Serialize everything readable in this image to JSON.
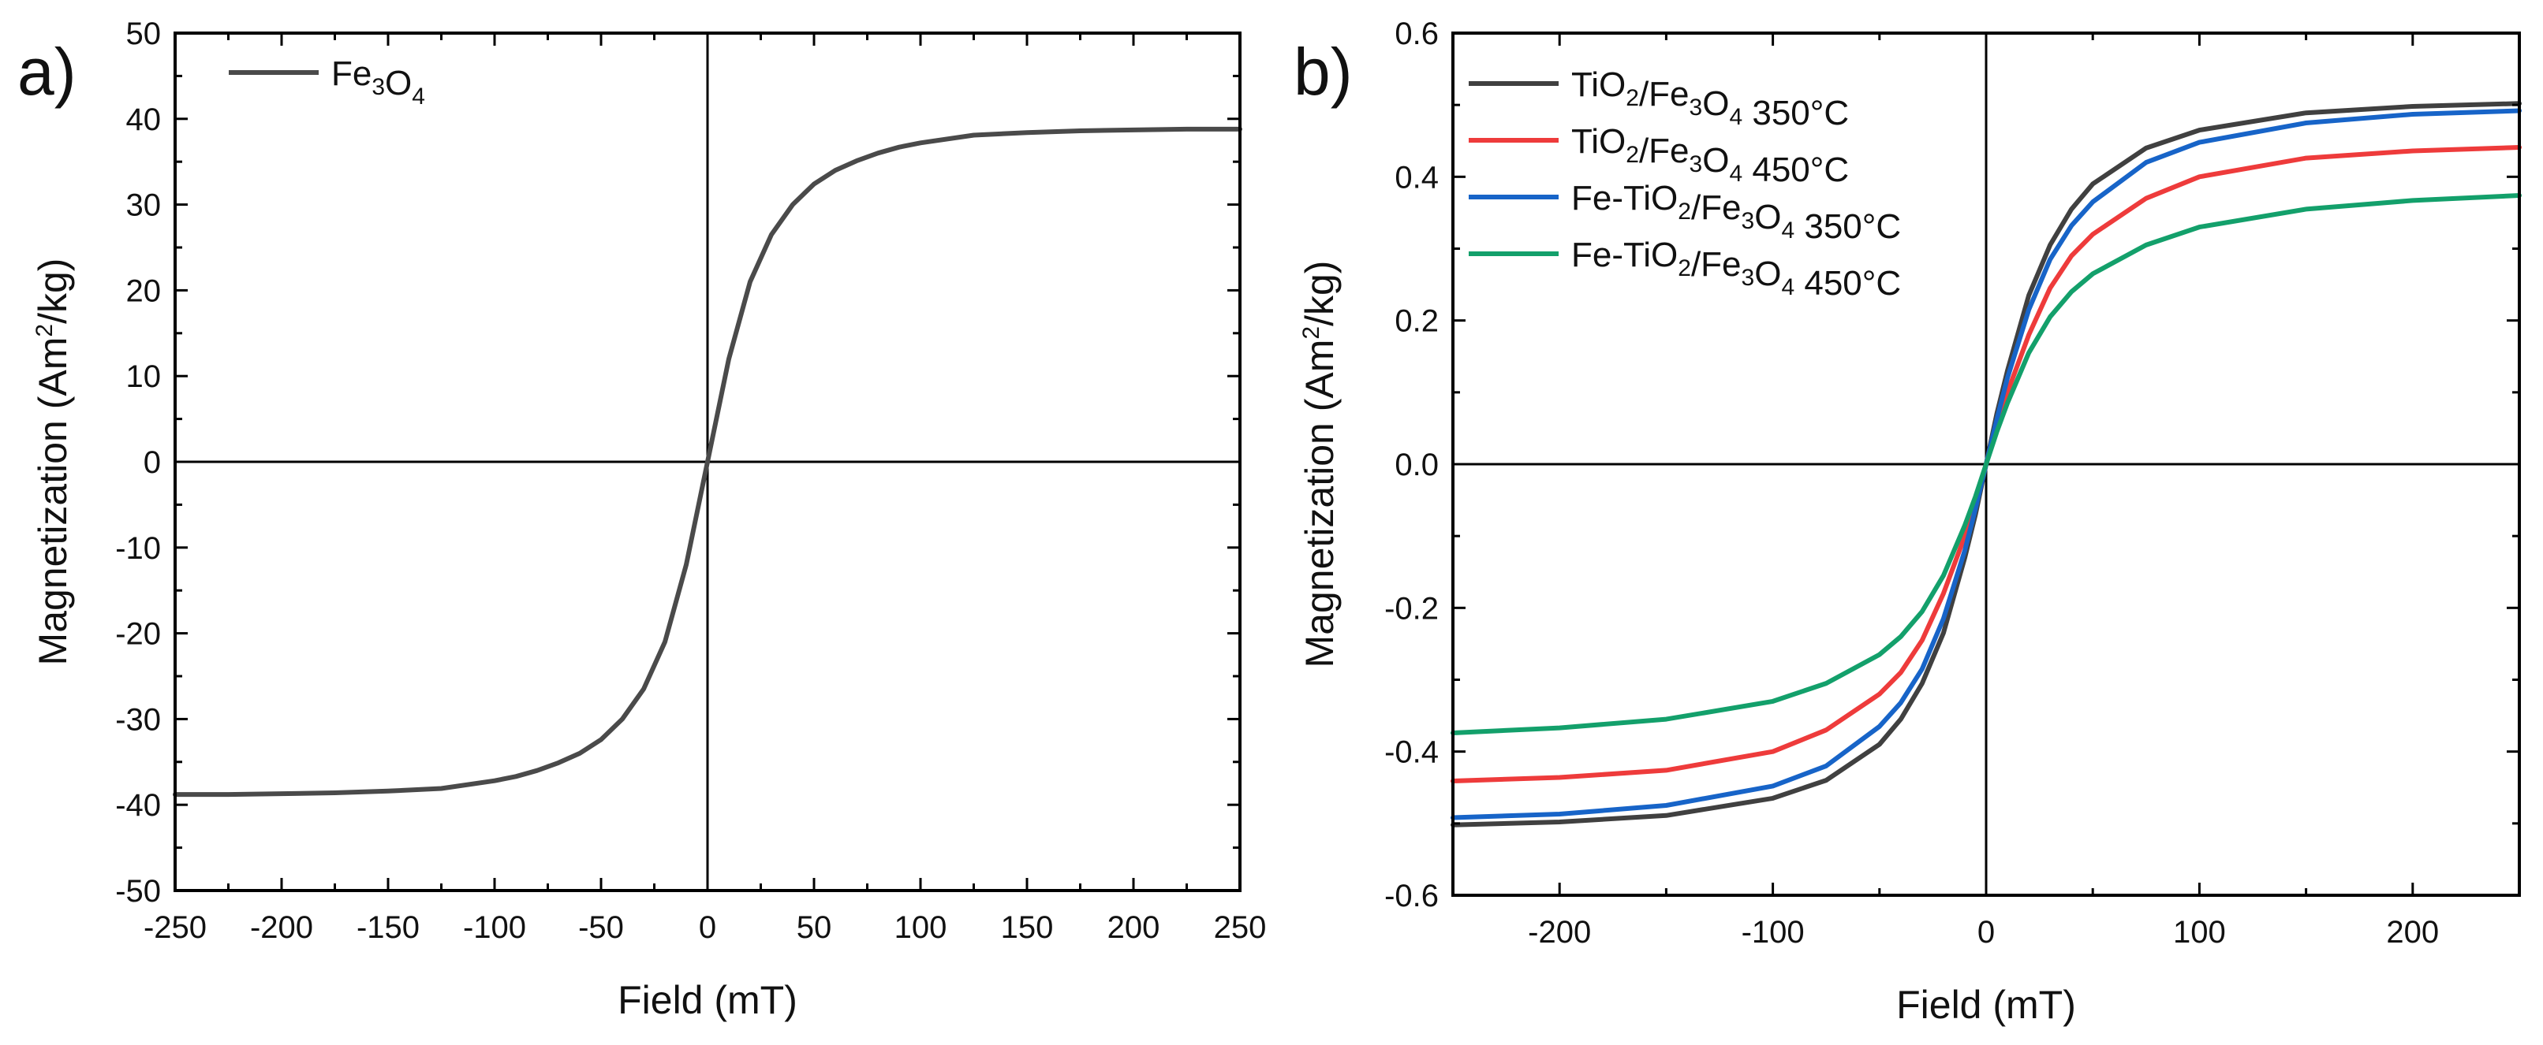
{
  "chart_data": [
    {
      "type": "line",
      "panel": "a)",
      "title": "",
      "xlabel": "Field (mT)",
      "ylabel": "Magnetization (Am²/kg)",
      "ylabel_parts": {
        "main": "Magnetization (Am",
        "sup": "2",
        "end": "/kg)"
      },
      "xlim": [
        -250,
        250
      ],
      "ylim": [
        -50,
        50
      ],
      "xticks": [
        -250,
        -200,
        -150,
        -100,
        -50,
        0,
        50,
        100,
        150,
        200,
        250
      ],
      "xtick_labels": [
        "-250",
        "-200",
        "-150",
        "-100",
        "-50",
        "0",
        "50",
        "100",
        "150",
        "200",
        "250"
      ],
      "yticks": [
        -50,
        -40,
        -30,
        -20,
        -10,
        0,
        10,
        20,
        30,
        40,
        50
      ],
      "ytick_labels": [
        "-50",
        "-40",
        "-30",
        "-20",
        "-10",
        "0",
        "10",
        "20",
        "30",
        "40",
        "50"
      ],
      "grid": false,
      "legend_position": "top-left",
      "series": [
        {
          "name": "Fe3O4",
          "label_parts": [
            {
              "t": "Fe"
            },
            {
              "t": "3",
              "sub": true
            },
            {
              "t": "O"
            },
            {
              "t": "4",
              "sub": true
            }
          ],
          "color": "#4a4a4a",
          "x": [
            -250,
            -225,
            -200,
            -175,
            -150,
            -125,
            -100,
            -90,
            -80,
            -70,
            -60,
            -50,
            -40,
            -30,
            -20,
            -10,
            -5,
            0,
            5,
            10,
            20,
            30,
            40,
            50,
            60,
            70,
            80,
            90,
            100,
            125,
            150,
            175,
            200,
            225,
            250
          ],
          "values": [
            -38.8,
            -38.8,
            -38.7,
            -38.6,
            -38.4,
            -38.1,
            -37.2,
            -36.7,
            -36.0,
            -35.1,
            -34.0,
            -32.4,
            -30.0,
            -26.5,
            -21.0,
            -12.0,
            -6.0,
            0.0,
            6.0,
            12.0,
            21.0,
            26.5,
            30.0,
            32.4,
            34.0,
            35.1,
            36.0,
            36.7,
            37.2,
            38.1,
            38.4,
            38.6,
            38.7,
            38.8,
            38.8
          ]
        }
      ]
    },
    {
      "type": "line",
      "panel": "b)",
      "title": "",
      "xlabel": "Field (mT)",
      "ylabel": "Magnetization (Am²/kg)",
      "ylabel_parts": {
        "main": "Magnetization (Am",
        "sup": "2",
        "end": "/kg)"
      },
      "xlim": [
        -250,
        250
      ],
      "ylim": [
        -0.6,
        0.6
      ],
      "xticks": [
        -200,
        -100,
        0,
        100,
        200
      ],
      "xtick_labels": [
        "-200",
        "-100",
        "0",
        "100",
        "200"
      ],
      "yticks": [
        -0.6,
        -0.4,
        -0.2,
        0.0,
        0.2,
        0.4,
        0.6
      ],
      "ytick_labels": [
        "-0.6",
        "-0.4",
        "-0.2",
        "0.0",
        "0.2",
        "0.4",
        "0.6"
      ],
      "grid": false,
      "legend_position": "top-left",
      "series": [
        {
          "name": "TiO2/Fe3O4 350°C",
          "label_parts": [
            {
              "t": "TiO"
            },
            {
              "t": "2",
              "sub": true
            },
            {
              "t": "/Fe"
            },
            {
              "t": "3",
              "sub": true
            },
            {
              "t": "O"
            },
            {
              "t": "4",
              "sub": true
            },
            {
              "t": " 350°C"
            }
          ],
          "color": "#404040",
          "x": [
            -250,
            -200,
            -150,
            -100,
            -75,
            -50,
            -40,
            -30,
            -20,
            -10,
            -5,
            0,
            5,
            10,
            20,
            30,
            40,
            50,
            75,
            100,
            150,
            200,
            250
          ],
          "values": [
            -0.502,
            -0.498,
            -0.489,
            -0.465,
            -0.44,
            -0.39,
            -0.355,
            -0.305,
            -0.235,
            -0.13,
            -0.07,
            0.0,
            0.07,
            0.13,
            0.235,
            0.305,
            0.355,
            0.39,
            0.44,
            0.465,
            0.489,
            0.498,
            0.502
          ]
        },
        {
          "name": "TiO2/Fe3O4 450°C",
          "label_parts": [
            {
              "t": "TiO"
            },
            {
              "t": "2",
              "sub": true
            },
            {
              "t": "/Fe"
            },
            {
              "t": "3",
              "sub": true
            },
            {
              "t": "O"
            },
            {
              "t": "4",
              "sub": true
            },
            {
              "t": " 450°C"
            }
          ],
          "color": "#ee3b3b",
          "x": [
            -250,
            -200,
            -150,
            -100,
            -75,
            -50,
            -40,
            -30,
            -20,
            -10,
            -5,
            0,
            5,
            10,
            20,
            30,
            40,
            50,
            75,
            100,
            150,
            200,
            250
          ],
          "values": [
            -0.441,
            -0.436,
            -0.426,
            -0.4,
            -0.37,
            -0.32,
            -0.29,
            -0.245,
            -0.18,
            -0.1,
            -0.052,
            0.0,
            0.052,
            0.1,
            0.18,
            0.245,
            0.29,
            0.32,
            0.37,
            0.4,
            0.426,
            0.436,
            0.441
          ]
        },
        {
          "name": "Fe-TiO2/Fe3O4 350°C",
          "label_parts": [
            {
              "t": "Fe-TiO"
            },
            {
              "t": "2",
              "sub": true
            },
            {
              "t": "/Fe"
            },
            {
              "t": "3",
              "sub": true
            },
            {
              "t": "O"
            },
            {
              "t": "4",
              "sub": true
            },
            {
              "t": " 350°C"
            }
          ],
          "color": "#1764c8",
          "x": [
            -250,
            -200,
            -150,
            -100,
            -75,
            -50,
            -40,
            -30,
            -20,
            -10,
            -5,
            0,
            5,
            10,
            20,
            30,
            40,
            50,
            75,
            100,
            150,
            200,
            250
          ],
          "values": [
            -0.492,
            -0.487,
            -0.475,
            -0.448,
            -0.42,
            -0.365,
            -0.332,
            -0.285,
            -0.215,
            -0.12,
            -0.062,
            0.0,
            0.062,
            0.12,
            0.215,
            0.285,
            0.332,
            0.365,
            0.42,
            0.448,
            0.475,
            0.487,
            0.492
          ]
        },
        {
          "name": "Fe-TiO2/Fe3O4 450°C",
          "label_parts": [
            {
              "t": "Fe-TiO"
            },
            {
              "t": "2",
              "sub": true
            },
            {
              "t": "/Fe"
            },
            {
              "t": "3",
              "sub": true
            },
            {
              "t": "O"
            },
            {
              "t": "4",
              "sub": true
            },
            {
              "t": " 450°C"
            }
          ],
          "color": "#13a06b",
          "x": [
            -250,
            -200,
            -150,
            -100,
            -75,
            -50,
            -40,
            -30,
            -20,
            -10,
            -5,
            0,
            5,
            10,
            20,
            30,
            40,
            50,
            75,
            100,
            150,
            200,
            250
          ],
          "values": [
            -0.374,
            -0.367,
            -0.355,
            -0.33,
            -0.305,
            -0.265,
            -0.24,
            -0.205,
            -0.155,
            -0.085,
            -0.045,
            0.0,
            0.045,
            0.085,
            0.155,
            0.205,
            0.24,
            0.265,
            0.305,
            0.33,
            0.355,
            0.367,
            0.374
          ]
        }
      ]
    }
  ]
}
